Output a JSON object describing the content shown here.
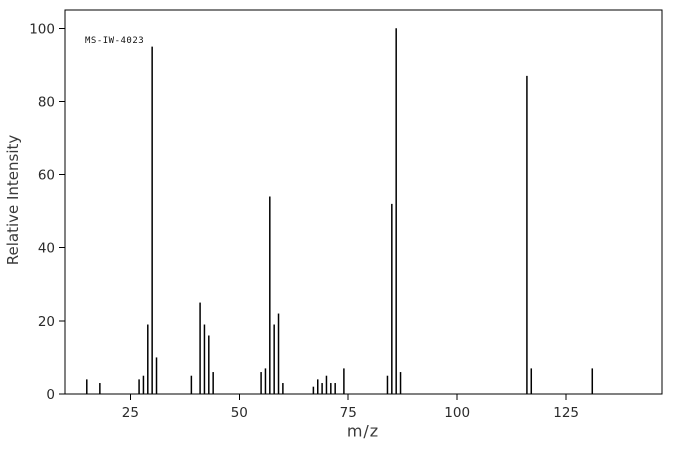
{
  "figure": {
    "sample_id": "MS-IW-4023",
    "xlabel": "m/z",
    "ylabel": "Relative Intensity"
  },
  "chart_data": {
    "type": "bar",
    "variant": "mass-spectrum-sticks",
    "title": "",
    "sample_id": "MS-IW-4023",
    "xlabel": "m/z",
    "ylabel": "Relative Intensity",
    "xlim": [
      10,
      147
    ],
    "ylim": [
      0,
      105
    ],
    "xticks": [
      25,
      50,
      75,
      100,
      125
    ],
    "yticks": [
      0,
      20,
      40,
      60,
      80,
      100
    ],
    "grid": false,
    "legend": false,
    "stick_color": "#000000",
    "axis_color": "#000000",
    "peaks": [
      {
        "mz": 15,
        "intensity": 4
      },
      {
        "mz": 18,
        "intensity": 3
      },
      {
        "mz": 27,
        "intensity": 4
      },
      {
        "mz": 28,
        "intensity": 5
      },
      {
        "mz": 29,
        "intensity": 19
      },
      {
        "mz": 30,
        "intensity": 95
      },
      {
        "mz": 31,
        "intensity": 10
      },
      {
        "mz": 39,
        "intensity": 5
      },
      {
        "mz": 41,
        "intensity": 25
      },
      {
        "mz": 42,
        "intensity": 19
      },
      {
        "mz": 43,
        "intensity": 16
      },
      {
        "mz": 44,
        "intensity": 6
      },
      {
        "mz": 55,
        "intensity": 6
      },
      {
        "mz": 56,
        "intensity": 7
      },
      {
        "mz": 57,
        "intensity": 54
      },
      {
        "mz": 58,
        "intensity": 19
      },
      {
        "mz": 59,
        "intensity": 22
      },
      {
        "mz": 60,
        "intensity": 3
      },
      {
        "mz": 67,
        "intensity": 2
      },
      {
        "mz": 68,
        "intensity": 4
      },
      {
        "mz": 69,
        "intensity": 3
      },
      {
        "mz": 70,
        "intensity": 5
      },
      {
        "mz": 71,
        "intensity": 3
      },
      {
        "mz": 72,
        "intensity": 3
      },
      {
        "mz": 74,
        "intensity": 7
      },
      {
        "mz": 84,
        "intensity": 5
      },
      {
        "mz": 85,
        "intensity": 52
      },
      {
        "mz": 86,
        "intensity": 100
      },
      {
        "mz": 87,
        "intensity": 6
      },
      {
        "mz": 116,
        "intensity": 87
      },
      {
        "mz": 117,
        "intensity": 7
      },
      {
        "mz": 131,
        "intensity": 7
      }
    ]
  }
}
